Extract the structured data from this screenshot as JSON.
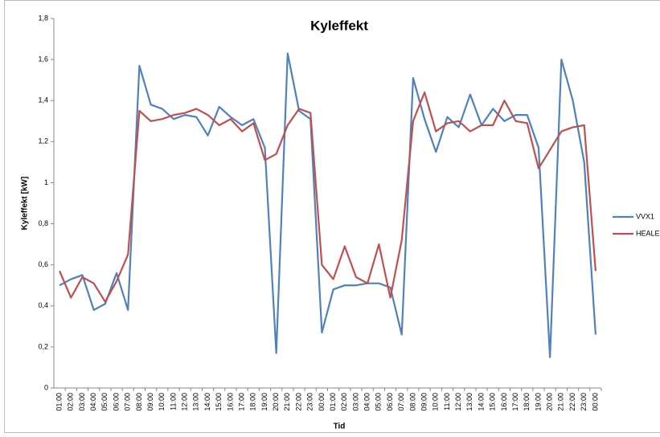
{
  "chart_data": {
    "type": "line",
    "title": "Kyleffekt",
    "x_label": "Tid",
    "y_label": "Kyleffekt [kW]",
    "categories": [
      "01:00",
      "02:00",
      "03:00",
      "04:00",
      "05:00",
      "06:00",
      "07:00",
      "08:00",
      "09:00",
      "10:00",
      "11:00",
      "12:00",
      "13:00",
      "14:00",
      "15:00",
      "16:00",
      "17:00",
      "18:00",
      "19:00",
      "20:00",
      "21:00",
      "22:00",
      "23:00",
      "00:00",
      "01:00",
      "02:00",
      "03:00",
      "04:00",
      "05:00",
      "06:00",
      "07:00",
      "08:00",
      "09:00",
      "10:00",
      "11:00",
      "12:00",
      "13:00",
      "14:00",
      "15:00",
      "16:00",
      "17:00",
      "18:00",
      "19:00",
      "20:00",
      "21:00",
      "22:00",
      "23:00",
      "00:00"
    ],
    "series": [
      {
        "name": "VVX1",
        "color": "#4f81bd",
        "values": [
          0.5,
          0.53,
          0.55,
          0.38,
          0.41,
          0.56,
          0.38,
          1.57,
          1.38,
          1.36,
          1.31,
          1.33,
          1.32,
          1.23,
          1.37,
          1.32,
          1.28,
          1.31,
          1.17,
          0.17,
          1.63,
          1.35,
          1.31,
          0.27,
          0.48,
          0.5,
          0.5,
          0.51,
          0.51,
          0.49,
          0.26,
          1.51,
          1.31,
          1.15,
          1.32,
          1.27,
          1.43,
          1.28,
          1.36,
          1.3,
          1.33,
          1.33,
          1.17,
          0.15,
          1.6,
          1.4,
          1.1,
          0.26
        ]
      },
      {
        "name": "HEALEX",
        "color": "#c0504d",
        "values": [
          0.57,
          0.44,
          0.54,
          0.51,
          0.42,
          0.52,
          0.65,
          1.35,
          1.3,
          1.31,
          1.33,
          1.34,
          1.36,
          1.33,
          1.28,
          1.31,
          1.25,
          1.29,
          1.11,
          1.14,
          1.28,
          1.36,
          1.34,
          0.6,
          0.53,
          0.69,
          0.54,
          0.51,
          0.7,
          0.44,
          0.72,
          1.3,
          1.44,
          1.25,
          1.29,
          1.3,
          1.25,
          1.28,
          1.28,
          1.4,
          1.3,
          1.29,
          1.07,
          1.16,
          1.25,
          1.27,
          1.28,
          0.57
        ]
      }
    ],
    "ylim": [
      0,
      1.8
    ],
    "yticks": [
      0,
      {
        "value": 0.2,
        "label": "0,2"
      },
      {
        "value": 0.4,
        "label": "0,4"
      },
      {
        "value": 0.6,
        "label": "0,6"
      },
      {
        "value": 0.8,
        "label": "0,8"
      },
      1,
      {
        "value": 1.2,
        "label": "1,2"
      },
      {
        "value": 1.4,
        "label": "1,4"
      },
      {
        "value": 1.6,
        "label": "1,6"
      },
      {
        "value": 1.8,
        "label": "1,8"
      }
    ],
    "grid": false,
    "legend": "right"
  }
}
